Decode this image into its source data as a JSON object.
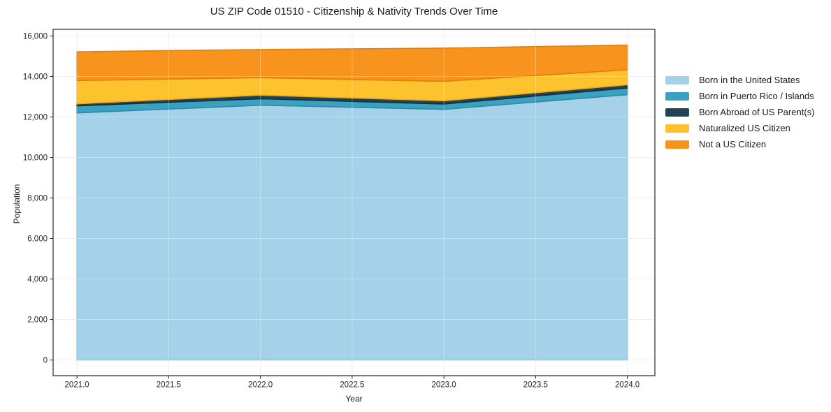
{
  "title": "US ZIP Code 01510 - Citizenship & Nativity Trends Over Time",
  "chart_data": {
    "type": "area",
    "stacked": true,
    "title": "US ZIP Code 01510 - Citizenship & Nativity Trends Over Time",
    "xlabel": "Year",
    "ylabel": "Population",
    "x": [
      2021,
      2022,
      2023,
      2024
    ],
    "series": [
      {
        "name": "Born in the United States",
        "color": "#a5d2e8",
        "edge": "#82bcd8",
        "values": [
          12200,
          12580,
          12375,
          13100
        ]
      },
      {
        "name": "Born in Puerto Rico / Islands",
        "color": "#3ba1c0",
        "edge": "#2f89a4",
        "values": [
          350,
          320,
          265,
          330
        ]
      },
      {
        "name": "Born Abroad of US Parent(s)",
        "color": "#1f4457",
        "edge": "#142e3c",
        "values": [
          100,
          180,
          160,
          160
        ]
      },
      {
        "name": "Naturalized US Citizen",
        "color": "#fdc32e",
        "edge": "#ebad17",
        "values": [
          1150,
          860,
          960,
          740
        ]
      },
      {
        "name": "Not a US Citizen",
        "color": "#f8941e",
        "edge": "#e07f10",
        "values": [
          1420,
          1390,
          1640,
          1220
        ]
      }
    ],
    "totals": [
      15220,
      15330,
      15400,
      15550
    ],
    "xticks": {
      "values": [
        2021.0,
        2021.5,
        2022.0,
        2022.5,
        2023.0,
        2023.5,
        2024.0
      ],
      "labels": [
        "2021.0",
        "2021.5",
        "2022.0",
        "2022.5",
        "2023.0",
        "2023.5",
        "2024.0"
      ]
    },
    "yticks": {
      "values": [
        0,
        2000,
        4000,
        6000,
        8000,
        10000,
        12000,
        14000,
        16000
      ],
      "labels": [
        "0",
        "2,000",
        "4,000",
        "6,000",
        "8,000",
        "10,000",
        "12,000",
        "14,000",
        "16,000"
      ]
    },
    "xlim": [
      2020.87,
      2024.15
    ],
    "ylim": [
      -777.5,
      16327.5
    ],
    "grid": true,
    "grid_color_under": "#e7e7e7",
    "grid_color_over": "rgba(255,255,255,0.32)",
    "spine_color": "#262626",
    "tick_color": "#262626",
    "legend_position": "right-outside"
  }
}
